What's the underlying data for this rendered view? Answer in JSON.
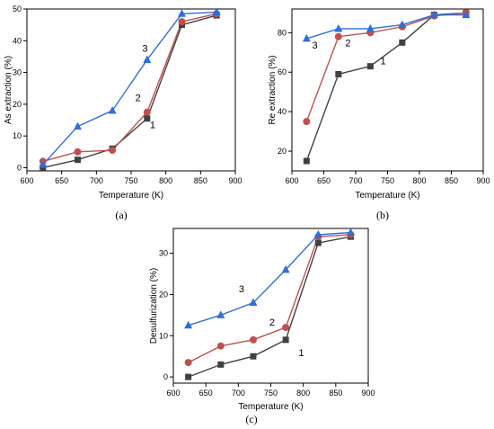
{
  "chart_data": [
    {
      "type": "line",
      "panel_label": "(a)",
      "xlabel": "Temperature (K)",
      "ylabel": "As extraction (%)",
      "xlim": [
        600,
        900
      ],
      "ylim": [
        -1,
        50
      ],
      "xticks": [
        600,
        650,
        700,
        750,
        800,
        850,
        900
      ],
      "yticks": [
        0,
        10,
        20,
        30,
        40,
        50
      ],
      "grid": false,
      "series": [
        {
          "name": "1",
          "color": "#404040",
          "marker": "square",
          "x": [
            623,
            673,
            723,
            773,
            823,
            873
          ],
          "y": [
            0,
            2.5,
            6,
            15.5,
            45,
            48
          ]
        },
        {
          "name": "2",
          "color": "#c0504d",
          "marker": "circle",
          "x": [
            623,
            673,
            723,
            773,
            823,
            873
          ],
          "y": [
            2,
            5,
            5.5,
            17.5,
            46,
            48.5
          ]
        },
        {
          "name": "3",
          "color": "#2e6fd8",
          "marker": "triangle",
          "x": [
            623,
            673,
            723,
            773,
            823,
            873
          ],
          "y": [
            1,
            13,
            18,
            34,
            48.5,
            49
          ]
        }
      ],
      "curve_labels": [
        {
          "text": "3",
          "x": 770,
          "y": 36.5
        },
        {
          "text": "2",
          "x": 760,
          "y": 21
        },
        {
          "text": "1",
          "x": 781,
          "y": 12.5
        }
      ]
    },
    {
      "type": "line",
      "panel_label": "(b)",
      "xlabel": "Temperature (K)",
      "ylabel": "Re extraction (%)",
      "xlim": [
        600,
        900
      ],
      "ylim": [
        10,
        92
      ],
      "xticks": [
        600,
        650,
        700,
        750,
        800,
        850,
        900
      ],
      "yticks": [
        20,
        40,
        60,
        80
      ],
      "grid": false,
      "series": [
        {
          "name": "1",
          "color": "#404040",
          "marker": "square",
          "x": [
            623,
            673,
            723,
            773,
            823,
            873
          ],
          "y": [
            15,
            59,
            63,
            75,
            89,
            90
          ]
        },
        {
          "name": "2",
          "color": "#c0504d",
          "marker": "circle",
          "x": [
            623,
            673,
            723,
            773,
            823,
            873
          ],
          "y": [
            35,
            78,
            80,
            83,
            88.5,
            90
          ]
        },
        {
          "name": "3",
          "color": "#2e6fd8",
          "marker": "triangle",
          "x": [
            623,
            673,
            723,
            773,
            823,
            873
          ],
          "y": [
            77,
            82,
            82,
            84,
            89,
            89
          ]
        }
      ],
      "curve_labels": [
        {
          "text": "3",
          "x": 636,
          "y": 72
        },
        {
          "text": "2",
          "x": 688,
          "y": 73
        },
        {
          "text": "1",
          "x": 743,
          "y": 64
        }
      ]
    },
    {
      "type": "line",
      "panel_label": "(c)",
      "xlabel": "Temperature (K)",
      "ylabel": "Desulfurization (%)",
      "xlim": [
        600,
        900
      ],
      "ylim": [
        -1.5,
        36
      ],
      "xticks": [
        600,
        650,
        700,
        750,
        800,
        850,
        900
      ],
      "yticks": [
        0,
        10,
        20,
        30
      ],
      "grid": false,
      "series": [
        {
          "name": "1",
          "color": "#404040",
          "marker": "square",
          "x": [
            623,
            673,
            723,
            773,
            823,
            873
          ],
          "y": [
            0,
            3,
            5,
            9,
            32.5,
            34
          ]
        },
        {
          "name": "2",
          "color": "#c0504d",
          "marker": "circle",
          "x": [
            623,
            673,
            723,
            773,
            823,
            873
          ],
          "y": [
            3.5,
            7.5,
            9,
            12,
            34,
            34.5
          ]
        },
        {
          "name": "3",
          "color": "#2e6fd8",
          "marker": "triangle",
          "x": [
            623,
            673,
            723,
            773,
            823,
            873
          ],
          "y": [
            12.5,
            15,
            18,
            26,
            34.5,
            35
          ]
        }
      ],
      "curve_labels": [
        {
          "text": "3",
          "x": 705,
          "y": 20.5
        },
        {
          "text": "2",
          "x": 752,
          "y": 12.5
        },
        {
          "text": "1",
          "x": 797,
          "y": 5
        }
      ]
    }
  ]
}
